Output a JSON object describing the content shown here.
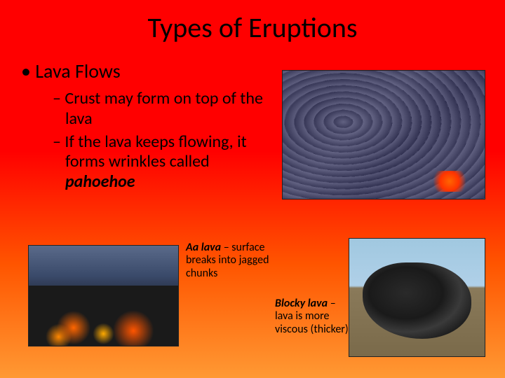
{
  "title": "Types of Eruptions",
  "main_bullet": "Lava Flows",
  "sub1_a": "Crust may form on top of the lava",
  "sub2_a": "If the lava keeps flowing, it forms wrinkles called ",
  "sub2_term": "pahoehoe",
  "aa_term": "Aa lava",
  "aa_rest": " – surface breaks into jagged chunks",
  "blocky_term": "Blocky lava",
  "blocky_rest": " – lava is more viscous (thicker)",
  "colors": {
    "bg_top": "#ff0000",
    "bg_bottom": "#ff9933",
    "text": "#000000"
  },
  "fonts": {
    "family": "Calibri",
    "title_size": 40,
    "main_size": 28,
    "sub_size": 24,
    "caption_size": 16
  },
  "images": {
    "pahoehoe": {
      "desc": "ropy wrinkled lava crust, grey-purple with orange cracks"
    },
    "aa": {
      "desc": "jagged dark lava with glowing orange interior"
    },
    "blocky": {
      "desc": "large dark blocky lava mound against sky"
    }
  }
}
